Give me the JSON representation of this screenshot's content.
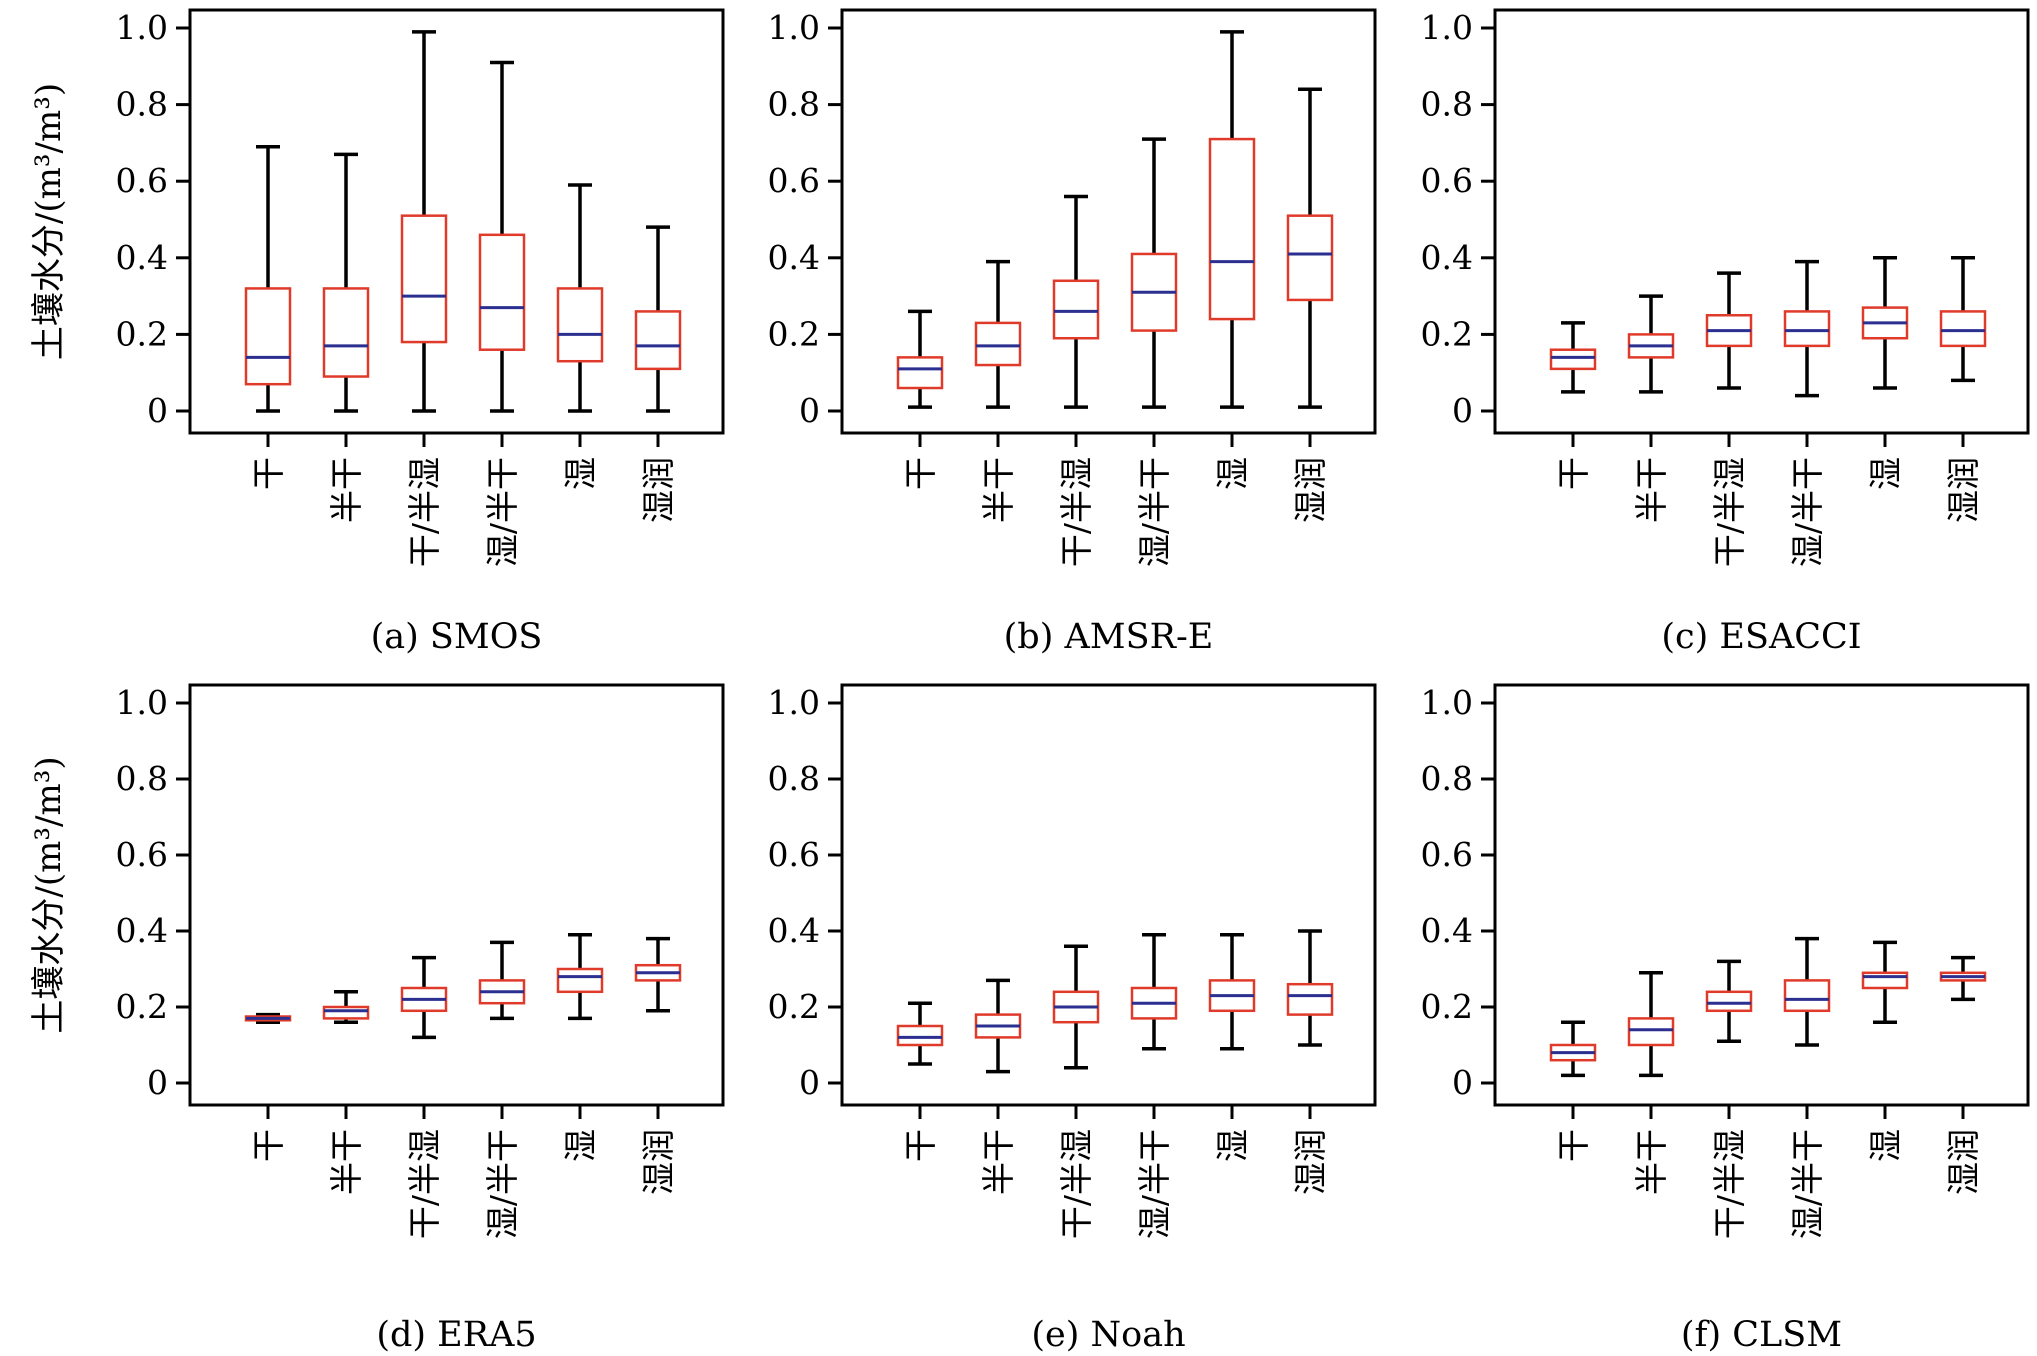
{
  "figure": {
    "ylabel": "土壤水分/(m³/m³)"
  },
  "colors": {
    "box": "#e03a2a",
    "median": "#2b2f8f",
    "whisker": "#000000",
    "frame": "#000000"
  },
  "chart_data": [
    {
      "type": "box",
      "title": "(a) SMOS",
      "ylabel": "土壤水分/(m³/m³)",
      "ylim": [
        0,
        1.0
      ],
      "yticks": [
        "0",
        "0.2",
        "0.4",
        "0.6",
        "0.8",
        "1.0"
      ],
      "categories": [
        "干",
        "半干",
        "干/半湿",
        "湿/半干",
        "湿",
        "湿润"
      ],
      "boxes": [
        {
          "min": 0.0,
          "q1": 0.07,
          "median": 0.14,
          "q3": 0.32,
          "max": 0.69
        },
        {
          "min": 0.0,
          "q1": 0.09,
          "median": 0.17,
          "q3": 0.32,
          "max": 0.67
        },
        {
          "min": 0.0,
          "q1": 0.18,
          "median": 0.3,
          "q3": 0.51,
          "max": 0.99
        },
        {
          "min": 0.0,
          "q1": 0.16,
          "median": 0.27,
          "q3": 0.46,
          "max": 0.91
        },
        {
          "min": 0.0,
          "q1": 0.13,
          "median": 0.2,
          "q3": 0.32,
          "max": 0.59
        },
        {
          "min": 0.0,
          "q1": 0.11,
          "median": 0.17,
          "q3": 0.26,
          "max": 0.48
        }
      ]
    },
    {
      "type": "box",
      "title": "(b) AMSR-E",
      "ylabel": "",
      "ylim": [
        0,
        1.0
      ],
      "yticks": [
        "0",
        "0.2",
        "0.4",
        "0.6",
        "0.8",
        "1.0"
      ],
      "categories": [
        "干",
        "半干",
        "干/半湿",
        "湿/半干",
        "湿",
        "湿润"
      ],
      "boxes": [
        {
          "min": 0.01,
          "q1": 0.06,
          "median": 0.11,
          "q3": 0.14,
          "max": 0.26
        },
        {
          "min": 0.01,
          "q1": 0.12,
          "median": 0.17,
          "q3": 0.23,
          "max": 0.39
        },
        {
          "min": 0.01,
          "q1": 0.19,
          "median": 0.26,
          "q3": 0.34,
          "max": 0.56
        },
        {
          "min": 0.01,
          "q1": 0.21,
          "median": 0.31,
          "q3": 0.41,
          "max": 0.71
        },
        {
          "min": 0.01,
          "q1": 0.24,
          "median": 0.39,
          "q3": 0.71,
          "max": 0.99
        },
        {
          "min": 0.01,
          "q1": 0.29,
          "median": 0.41,
          "q3": 0.51,
          "max": 0.84
        }
      ]
    },
    {
      "type": "box",
      "title": "(c) ESACCI",
      "ylabel": "",
      "ylim": [
        0,
        1.0
      ],
      "yticks": [
        "0",
        "0.2",
        "0.4",
        "0.6",
        "0.8",
        "1.0"
      ],
      "categories": [
        "干",
        "半干",
        "干/半湿",
        "湿/半干",
        "湿",
        "湿润"
      ],
      "boxes": [
        {
          "min": 0.05,
          "q1": 0.11,
          "median": 0.14,
          "q3": 0.16,
          "max": 0.23
        },
        {
          "min": 0.05,
          "q1": 0.14,
          "median": 0.17,
          "q3": 0.2,
          "max": 0.3
        },
        {
          "min": 0.06,
          "q1": 0.17,
          "median": 0.21,
          "q3": 0.25,
          "max": 0.36
        },
        {
          "min": 0.04,
          "q1": 0.17,
          "median": 0.21,
          "q3": 0.26,
          "max": 0.39
        },
        {
          "min": 0.06,
          "q1": 0.19,
          "median": 0.23,
          "q3": 0.27,
          "max": 0.4
        },
        {
          "min": 0.08,
          "q1": 0.17,
          "median": 0.21,
          "q3": 0.26,
          "max": 0.4
        }
      ]
    },
    {
      "type": "box",
      "title": "(d) ERA5",
      "ylabel": "土壤水分/(m³/m³)",
      "ylim": [
        0,
        1.0
      ],
      "yticks": [
        "0",
        "0.2",
        "0.4",
        "0.6",
        "0.8",
        "1.0"
      ],
      "categories": [
        "干",
        "半干",
        "干/半湿",
        "湿/半干",
        "湿",
        "湿润"
      ],
      "boxes": [
        {
          "min": 0.16,
          "q1": 0.165,
          "median": 0.17,
          "q3": 0.175,
          "max": 0.18
        },
        {
          "min": 0.16,
          "q1": 0.17,
          "median": 0.19,
          "q3": 0.2,
          "max": 0.24
        },
        {
          "min": 0.12,
          "q1": 0.19,
          "median": 0.22,
          "q3": 0.25,
          "max": 0.33
        },
        {
          "min": 0.17,
          "q1": 0.21,
          "median": 0.24,
          "q3": 0.27,
          "max": 0.37
        },
        {
          "min": 0.17,
          "q1": 0.24,
          "median": 0.28,
          "q3": 0.3,
          "max": 0.39
        },
        {
          "min": 0.19,
          "q1": 0.27,
          "median": 0.29,
          "q3": 0.31,
          "max": 0.38
        }
      ]
    },
    {
      "type": "box",
      "title": "(e) Noah",
      "ylabel": "",
      "ylim": [
        0,
        1.0
      ],
      "yticks": [
        "0",
        "0.2",
        "0.4",
        "0.6",
        "0.8",
        "1.0"
      ],
      "categories": [
        "干",
        "半干",
        "干/半湿",
        "湿/半干",
        "湿",
        "湿润"
      ],
      "boxes": [
        {
          "min": 0.05,
          "q1": 0.1,
          "median": 0.12,
          "q3": 0.15,
          "max": 0.21
        },
        {
          "min": 0.03,
          "q1": 0.12,
          "median": 0.15,
          "q3": 0.18,
          "max": 0.27
        },
        {
          "min": 0.04,
          "q1": 0.16,
          "median": 0.2,
          "q3": 0.24,
          "max": 0.36
        },
        {
          "min": 0.09,
          "q1": 0.17,
          "median": 0.21,
          "q3": 0.25,
          "max": 0.39
        },
        {
          "min": 0.09,
          "q1": 0.19,
          "median": 0.23,
          "q3": 0.27,
          "max": 0.39
        },
        {
          "min": 0.1,
          "q1": 0.18,
          "median": 0.23,
          "q3": 0.26,
          "max": 0.4
        }
      ]
    },
    {
      "type": "box",
      "title": "(f) CLSM",
      "ylabel": "",
      "ylim": [
        0,
        1.0
      ],
      "yticks": [
        "0",
        "0.2",
        "0.4",
        "0.6",
        "0.8",
        "1.0"
      ],
      "categories": [
        "干",
        "半干",
        "干/半湿",
        "湿/半干",
        "湿",
        "湿润"
      ],
      "boxes": [
        {
          "min": 0.02,
          "q1": 0.06,
          "median": 0.08,
          "q3": 0.1,
          "max": 0.16
        },
        {
          "min": 0.02,
          "q1": 0.1,
          "median": 0.14,
          "q3": 0.17,
          "max": 0.29
        },
        {
          "min": 0.11,
          "q1": 0.19,
          "median": 0.21,
          "q3": 0.24,
          "max": 0.32
        },
        {
          "min": 0.1,
          "q1": 0.19,
          "median": 0.22,
          "q3": 0.27,
          "max": 0.38
        },
        {
          "min": 0.16,
          "q1": 0.25,
          "median": 0.28,
          "q3": 0.29,
          "max": 0.37
        },
        {
          "min": 0.22,
          "q1": 0.27,
          "median": 0.28,
          "q3": 0.29,
          "max": 0.33
        }
      ]
    }
  ]
}
